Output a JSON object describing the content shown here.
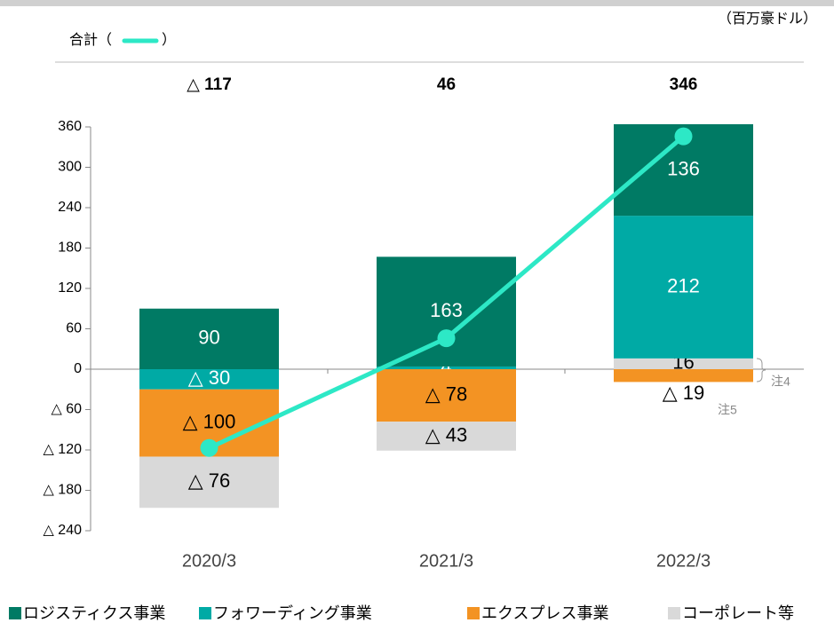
{
  "chart_data": {
    "type": "stacked_bar_line",
    "unit": "（百万豪ドル）",
    "total_legend": [
      "合計（",
      "）"
    ],
    "categories": [
      "2020/3",
      "2021/3",
      "2022/3"
    ],
    "series": [
      {
        "name": "ロジスティクス事業",
        "color": "#007a64",
        "values": [
          90,
          163,
          136
        ],
        "value_labels": [
          "90",
          "163",
          "136"
        ]
      },
      {
        "name": "フォワーディング事業",
        "color": "#00aaa5",
        "values": [
          -30,
          4,
          212
        ],
        "value_labels": [
          "△ 30",
          "4",
          "212"
        ]
      },
      {
        "name": "エクスプレス事業",
        "color": "#f39323",
        "values": [
          -100,
          -78,
          -19
        ],
        "value_labels": [
          "△ 100",
          "△ 78",
          "△ 19"
        ]
      },
      {
        "name": "コーポレート等",
        "color": "#d9d9d9",
        "values": [
          -76,
          -43,
          16
        ],
        "value_labels": [
          "△ 76",
          "△ 43",
          "16"
        ]
      }
    ],
    "total": {
      "color": "#2de8c6",
      "values": [
        -117,
        46,
        346
      ],
      "value_labels": [
        "△ 117",
        "46",
        "346"
      ]
    },
    "annotations": [
      "注4",
      "注5"
    ],
    "ylim": [
      -240,
      360
    ],
    "yticks": [
      {
        "value": -240,
        "label": "△ 240"
      },
      {
        "value": -180,
        "label": "△ 180"
      },
      {
        "value": -120,
        "label": "△ 120"
      },
      {
        "value": -60,
        "label": "△ 60"
      },
      0,
      60,
      120,
      180,
      240,
      300,
      360
    ]
  }
}
